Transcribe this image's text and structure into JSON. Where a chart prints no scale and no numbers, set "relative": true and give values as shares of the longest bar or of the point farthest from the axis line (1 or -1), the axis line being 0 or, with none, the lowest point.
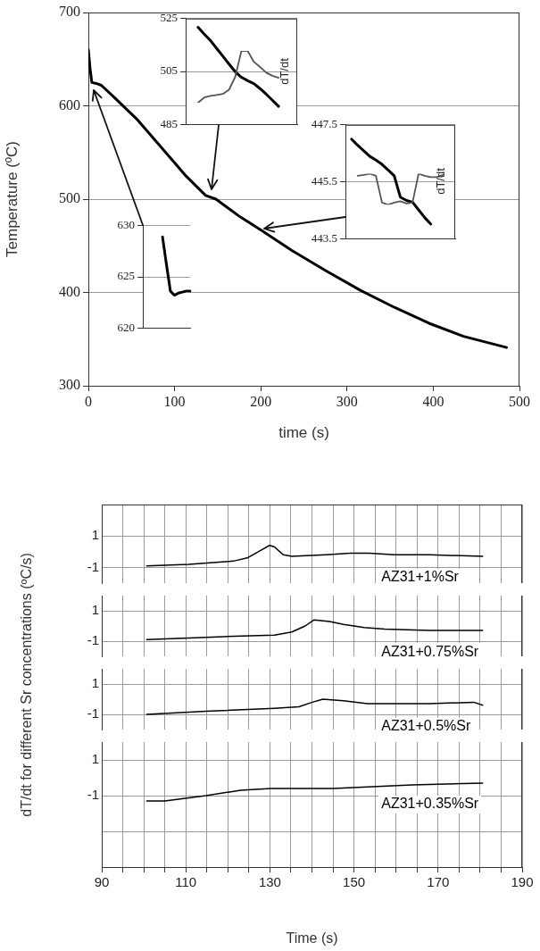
{
  "chart_data": [
    {
      "type": "line",
      "xlabel": "time (s)",
      "ylabel": "Temperature (ºC)",
      "xlim": [
        0,
        500
      ],
      "xticks": [
        0,
        100,
        200,
        300,
        400,
        500
      ],
      "ylim": [
        300,
        700
      ],
      "yticks": [
        300,
        400,
        500,
        600,
        700
      ],
      "grid": "y",
      "legend": false,
      "marker": "none",
      "series": [
        {
          "color": "#000000",
          "x": [
            0,
            2,
            4,
            9,
            15,
            29,
            57,
            85,
            112,
            136,
            148,
            176,
            200,
            236,
            276,
            316,
            355,
            395,
            435,
            485
          ],
          "values": [
            660,
            640,
            625,
            624,
            622,
            610,
            585,
            555,
            526,
            504,
            500,
            481,
            467,
            445,
            423,
            402,
            384,
            367,
            353,
            341
          ]
        }
      ]
    },
    {
      "type": "line",
      "categories": [
        null,
        null,
        null,
        null,
        null,
        null,
        null,
        null,
        null,
        null,
        null,
        null,
        null,
        null,
        null,
        null,
        null,
        null,
        null
      ],
      "ylim": [
        485,
        525
      ],
      "yticks": [
        485,
        505,
        525
      ],
      "grid": "y",
      "legend": false,
      "marker": "none",
      "tick_labels": "y",
      "series": [
        {
          "color": "#000000",
          "values": [
            null,
            null,
            521.7,
            519.1,
            516.7,
            513.7,
            510.8,
            507.8,
            504.9,
            502.8,
            501.5,
            500.4,
            498.5,
            496.4,
            494.1,
            491.8,
            null,
            null,
            null
          ]
        }
      ]
    },
    {
      "type": "line",
      "relative": true,
      "ylabel": "dT/dt",
      "categories": [
        null,
        null,
        null,
        null,
        null,
        null,
        null,
        null,
        null,
        null,
        null,
        null,
        null,
        null,
        null,
        null,
        null,
        null,
        null
      ],
      "legend": false,
      "marker": "none",
      "tick_labels": false,
      "series": [
        {
          "color": "#555555",
          "values": [
            null,
            null,
            0,
            0.1,
            0.13,
            0.15,
            0.17,
            0.25,
            0.5,
            1,
            1,
            0.79,
            0.69,
            0.58,
            0.52,
            0.48,
            null,
            null,
            null
          ]
        }
      ]
    },
    {
      "type": "line",
      "categories": [
        null,
        null,
        null,
        null,
        null,
        null,
        null,
        null,
        null,
        null,
        null,
        null,
        null,
        null,
        null,
        null,
        null,
        null,
        null
      ],
      "ylim": [
        443.5,
        447.5
      ],
      "yticks": [
        443.5,
        445.5,
        447.5
      ],
      "grid": "y",
      "legend": false,
      "marker": "none",
      "tick_labels": "y",
      "series": [
        {
          "color": "#000000",
          "values": [
            null,
            447.0,
            446.78,
            446.59,
            446.39,
            446.26,
            446.11,
            445.91,
            445.71,
            444.96,
            444.84,
            444.78,
            444.51,
            444.24,
            444.01,
            null,
            null,
            null,
            null
          ]
        }
      ]
    },
    {
      "type": "line",
      "relative": true,
      "ylabel": "dT/dt",
      "categories": [
        null,
        null,
        null,
        null,
        null,
        null,
        null,
        null,
        null,
        null,
        null,
        null,
        null,
        null,
        null,
        null,
        null,
        null,
        null
      ],
      "legend": false,
      "marker": "none",
      "tick_labels": false,
      "series": [
        {
          "color": "#555555",
          "values": [
            null,
            null,
            0.93,
            0.96,
            1,
            0.93,
            0.07,
            0,
            0.07,
            0.11,
            0.04,
            0.07,
            1,
            0.93,
            0.89,
            0.89,
            0.96,
            null,
            null
          ]
        }
      ]
    },
    {
      "type": "line",
      "categories": [
        null,
        null,
        null,
        null,
        null,
        null,
        null,
        null,
        null,
        null,
        null,
        null,
        null
      ],
      "ylim": [
        620,
        630
      ],
      "yticks": [
        620,
        625,
        630
      ],
      "grid": "y",
      "legend": false,
      "marker": "none",
      "tick_labels": "y",
      "series": [
        {
          "color": "#000000",
          "values": [
            null,
            null,
            null,
            null,
            null,
            628.9,
            626.2,
            623.6,
            623.2,
            623.4,
            623.5,
            623.6,
            623.6
          ]
        }
      ]
    },
    {
      "type": "line",
      "ylabel": "dT/dt for different Sr concentrations (ºC/s)",
      "xlim": [
        90,
        190
      ],
      "xticks": [
        90,
        95,
        100,
        105,
        110,
        115,
        120,
        125,
        130,
        135,
        140,
        145,
        150,
        155,
        160,
        165,
        170,
        175,
        180,
        185,
        190
      ],
      "ylim": [
        -2,
        3
      ],
      "yticks": [
        -1,
        1
      ],
      "grid": true,
      "legend": false,
      "marker": "none",
      "tick_labels": "y",
      "series": [
        {
          "name": "AZ31+1%Sr",
          "color": "#000000",
          "x": [
            100.7,
            110.7,
            121.3,
            124.6,
            127.9,
            129.9,
            131.1,
            133.2,
            135.2,
            143.4,
            149.1,
            153.6,
            159.7,
            167.9,
            180.6
          ],
          "values": [
            -0.9,
            -0.8,
            -0.6,
            -0.4,
            0.1,
            0.4,
            0.3,
            -0.2,
            -0.3,
            -0.2,
            -0.1,
            -0.1,
            -0.2,
            -0.2,
            -0.3
          ]
        }
      ]
    },
    {
      "type": "line",
      "xlim": [
        90,
        190
      ],
      "xticks": [
        90,
        95,
        100,
        105,
        110,
        115,
        120,
        125,
        130,
        135,
        140,
        145,
        150,
        155,
        160,
        165,
        170,
        175,
        180,
        185,
        190
      ],
      "ylim": [
        -2,
        2
      ],
      "yticks": [
        -1,
        1
      ],
      "grid": true,
      "legend": false,
      "marker": "none",
      "tick_labels": "y",
      "series": [
        {
          "name": "AZ31+0.75%Sr",
          "color": "#000000",
          "x": [
            100.7,
            110.7,
            118.9,
            131.1,
            135.2,
            138.4,
            140.5,
            144.2,
            147.5,
            152.4,
            157.3,
            167.9,
            180.6
          ],
          "values": [
            -0.9,
            -0.8,
            -0.7,
            -0.6,
            -0.4,
            0.0,
            0.4,
            0.3,
            0.1,
            -0.1,
            -0.2,
            -0.3,
            -0.3
          ]
        }
      ]
    },
    {
      "type": "line",
      "xlim": [
        90,
        190
      ],
      "xticks": [
        90,
        95,
        100,
        105,
        110,
        115,
        120,
        125,
        130,
        135,
        140,
        145,
        150,
        155,
        160,
        165,
        170,
        175,
        180,
        185,
        190
      ],
      "ylim": [
        -2,
        2
      ],
      "yticks": [
        -1,
        1
      ],
      "grid": true,
      "legend": false,
      "marker": "none",
      "tick_labels": "y",
      "series": [
        {
          "name": "AZ31+0.5%Sr",
          "color": "#000000",
          "x": [
            100.7,
            114.8,
            131.1,
            136.9,
            140.1,
            142.6,
            147.5,
            153.2,
            167.9,
            178.5,
            180.6
          ],
          "values": [
            -1.0,
            -0.8,
            -0.6,
            -0.5,
            -0.2,
            0.0,
            -0.1,
            -0.3,
            -0.3,
            -0.2,
            -0.4
          ]
        }
      ]
    },
    {
      "type": "line",
      "xlabel": "Time (s)",
      "xlim": [
        90,
        190
      ],
      "xticks": [
        90,
        {
          "value": 95,
          "label": null
        },
        {
          "value": 100,
          "label": null
        },
        {
          "value": 105,
          "label": null
        },
        110,
        {
          "value": 115,
          "label": null
        },
        {
          "value": 120,
          "label": null
        },
        {
          "value": 125,
          "label": null
        },
        130,
        {
          "value": 135,
          "label": null
        },
        {
          "value": 140,
          "label": null
        },
        {
          "value": 145,
          "label": null
        },
        150,
        {
          "value": 155,
          "label": null
        },
        {
          "value": 160,
          "label": null
        },
        {
          "value": 165,
          "label": null
        },
        170,
        {
          "value": 175,
          "label": null
        },
        {
          "value": 180,
          "label": null
        },
        {
          "value": 185,
          "label": null
        },
        190
      ],
      "ylim": [
        -5,
        2
      ],
      "yticks": [
        {
          "value": -3,
          "label": null
        },
        -1,
        1
      ],
      "grid": true,
      "legend": false,
      "marker": "none",
      "series": [
        {
          "name": "AZ31+0.35%Sr",
          "color": "#000000",
          "x": [
            100.7,
            105,
            114.8,
            123,
            130.3,
            145,
            163.8,
            180.6
          ],
          "values": [
            -1.3,
            -1.3,
            -1.0,
            -0.7,
            -0.6,
            -0.6,
            -0.4,
            -0.3
          ]
        }
      ]
    }
  ]
}
